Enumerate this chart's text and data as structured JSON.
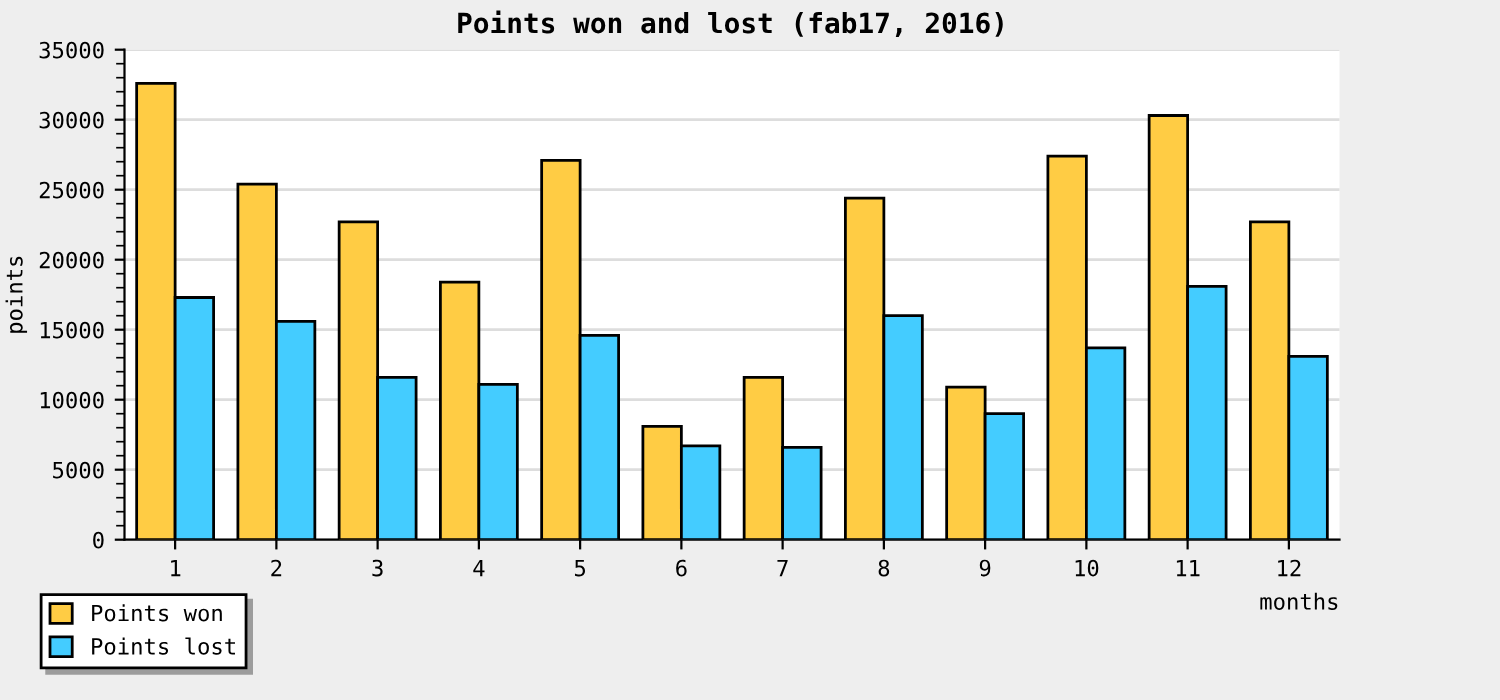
{
  "chart_data": {
    "type": "bar",
    "title": "Points won and lost (fab17, 2016)",
    "xlabel": "months",
    "ylabel": "points",
    "categories": [
      "1",
      "2",
      "3",
      "4",
      "5",
      "6",
      "7",
      "8",
      "9",
      "10",
      "11",
      "12"
    ],
    "series": [
      {
        "name": "Points won",
        "color": "#ffcc44",
        "values": [
          32600,
          25400,
          22700,
          18400,
          27100,
          8100,
          11600,
          24400,
          10900,
          27400,
          30300,
          22700
        ]
      },
      {
        "name": "Points lost",
        "color": "#44ccff",
        "values": [
          17300,
          15600,
          11600,
          11100,
          14600,
          6700,
          6600,
          16000,
          9000,
          13700,
          18100,
          13100
        ]
      }
    ],
    "ylim": [
      0,
      35000
    ],
    "yticks": [
      0,
      5000,
      10000,
      15000,
      20000,
      25000,
      30000,
      35000
    ],
    "grid": "y",
    "legend": "bottom left"
  }
}
